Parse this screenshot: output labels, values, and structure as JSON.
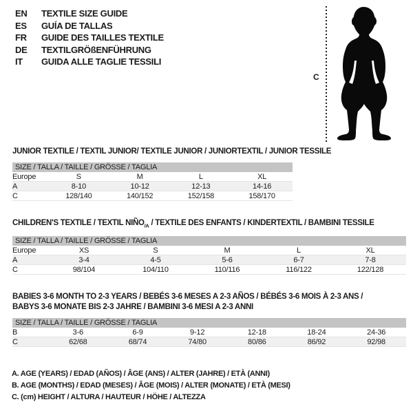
{
  "colors": {
    "text": "#1b1b1b",
    "table_header_bg": "#c4c4c4",
    "shaded_row_bg": "#f0f0f0",
    "row_border": "#e4e4e4",
    "silhouette": "#0a0a0a"
  },
  "languages": [
    {
      "code": "EN",
      "label": "TEXTILE SIZE GUIDE"
    },
    {
      "code": "ES",
      "label": "GUÍA DE TALLAS"
    },
    {
      "code": "FR",
      "label": "GUIDE DES TAILLES TEXTILE"
    },
    {
      "code": "DE",
      "label": "TEXTILGRÖßENFÜHRUNG"
    },
    {
      "code": "IT",
      "label": "GUIDA ALLE TAGLIE TESSILI"
    }
  ],
  "figure": {
    "height_marker_label": "C",
    "icon": "baby-silhouette"
  },
  "tables": [
    {
      "title_lines": [
        [
          {
            "t": "JUNIOR TEXTILE / TEXTIL JUNIOR/ TEXTILE JUNIOR / JUNIORTEXTIL / JUNIOR TESSILE"
          }
        ]
      ],
      "size_header": "SIZE / TALLA / TAILLE / GRÖSSE / TAGLIA",
      "rows": [
        {
          "label": "Europe",
          "values": [
            "S",
            "M",
            "L",
            "XL"
          ],
          "shaded": false
        },
        {
          "label": "A",
          "values": [
            "8-10",
            "10-12",
            "12-13",
            "14-16"
          ],
          "shaded": true
        },
        {
          "label": "C",
          "values": [
            "128/140",
            "140/152",
            "152/158",
            "158/170"
          ],
          "shaded": false
        }
      ]
    },
    {
      "title_lines": [
        [
          {
            "t": "CHILDREN'S TEXTILE / TEXTIL NIÑO"
          },
          {
            "t": "/A",
            "sub": true
          },
          {
            "t": " / TEXTILE DES ENFANTS / KINDERTEXTIL / BAMBINI TESSILE"
          }
        ]
      ],
      "size_header": "SIZE / TALLA / TAILLE / GRÖSSE / TAGLIA",
      "rows": [
        {
          "label": "Europe",
          "values": [
            "XS",
            "S",
            "M",
            "L",
            "XL"
          ],
          "shaded": false
        },
        {
          "label": "A",
          "values": [
            "3-4",
            "4-5",
            "5-6",
            "6-7",
            "7-8"
          ],
          "shaded": true
        },
        {
          "label": "C",
          "values": [
            "98/104",
            "104/110",
            "110/116",
            "116/122",
            "122/128"
          ],
          "shaded": false
        }
      ]
    },
    {
      "title_lines": [
        [
          {
            "t": "BABIES 3-6 MONTH TO 2-3 YEARS / BEBÉS 3-6 MESES A 2-3 AÑOS / BÉBÉS 3-6 MOIS À 2-3 ANS /"
          }
        ],
        [
          {
            "t": "BABYS 3-6 MONATE BIS 2-3 JAHRE / BAMBINI 3-6 MESI A 2-3 ANNI"
          }
        ]
      ],
      "size_header": "SIZE / TALLA / TAILLE / GRÖSSE / TAGLIA",
      "rows": [
        {
          "label": "B",
          "values": [
            "3-6",
            "6-9",
            "9-12",
            "12-18",
            "18-24",
            "24-36"
          ],
          "shaded": false
        },
        {
          "label": "C",
          "values": [
            "62/68",
            "68/74",
            "74/80",
            "80/86",
            "86/92",
            "92/98"
          ],
          "shaded": true
        }
      ]
    }
  ],
  "footnotes": [
    "A. AGE (YEARS) / EDAD (AÑOS) / ÂGE (ANS) / ALTER (JAHRE) / ETÀ (ANNI)",
    "B. AGE (MONTHS) / EDAD (MESES) / ÂGE (MOIS) / ALTER (MONATE) / ETÀ (MESI)",
    "C. (cm) HEIGHT / ALTURA / HAUTEUR / HÖHE / ALTEZZA"
  ]
}
